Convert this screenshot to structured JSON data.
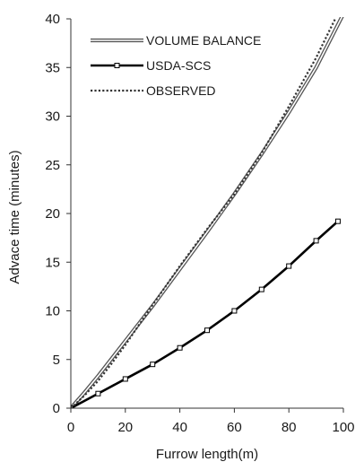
{
  "chart_data": {
    "type": "line",
    "title": "",
    "xlabel": "Furrow length(m)",
    "ylabel": "Advace time (minutes)",
    "xlim": [
      0,
      100
    ],
    "ylim": [
      0,
      40
    ],
    "xticks": [
      "0",
      "20",
      "40",
      "60",
      "80",
      "100"
    ],
    "yticks": [
      "0",
      "5",
      "10",
      "15",
      "20",
      "25",
      "30",
      "35",
      "40"
    ],
    "grid": false,
    "legend_position": "top-left",
    "series": [
      {
        "name": "VOLUME BALANCE",
        "style": "double-line",
        "color": "#555555",
        "x": [
          0,
          5,
          10,
          20,
          30,
          40,
          50,
          60,
          70,
          80,
          90,
          100
        ],
        "y": [
          0,
          1.6,
          3.3,
          6.9,
          10.5,
          14.3,
          18.1,
          22.0,
          26.1,
          30.4,
          35.0,
          40.5
        ]
      },
      {
        "name": "USDA-SCS",
        "style": "thick-line-square-markers",
        "color": "#000000",
        "x": [
          0,
          10,
          20,
          30,
          40,
          50,
          60,
          70,
          80,
          90,
          98
        ],
        "y": [
          0,
          1.5,
          3.0,
          4.5,
          6.2,
          8.0,
          10.0,
          12.2,
          14.6,
          17.2,
          19.2
        ]
      },
      {
        "name": "OBSERVED",
        "style": "dotted",
        "color": "#333333",
        "x": [
          0,
          5,
          10,
          15,
          20,
          30,
          40,
          50,
          60,
          70,
          80,
          90,
          97
        ],
        "y": [
          0,
          1.3,
          2.8,
          4.6,
          6.5,
          10.6,
          14.6,
          18.4,
          22.0,
          26.2,
          31.0,
          36.0,
          40.0
        ]
      }
    ]
  }
}
